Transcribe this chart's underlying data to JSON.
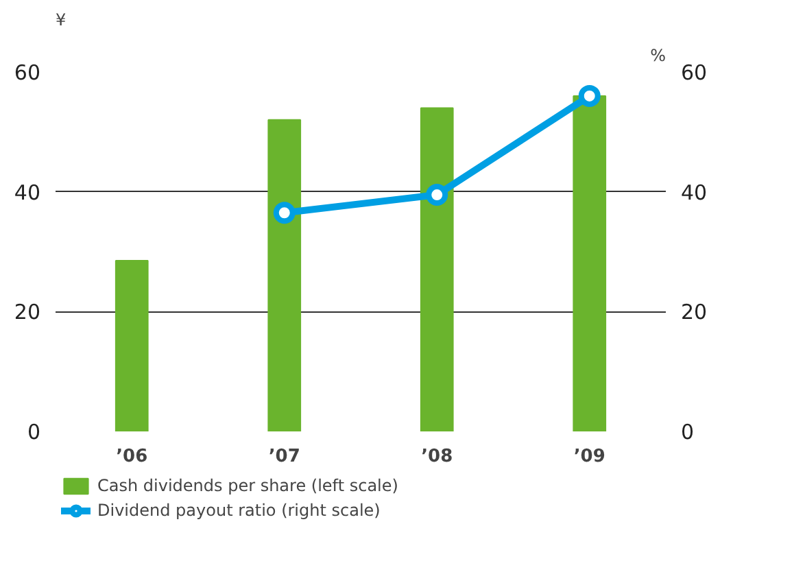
{
  "chart_data": {
    "type": "bar",
    "categories": [
      "’06",
      "’07",
      "’08",
      "’09"
    ],
    "ylabel": "¥",
    "y2label": "%",
    "ylim": [
      0,
      60
    ],
    "yticks": [
      0,
      20,
      40,
      60
    ],
    "y2lim": [
      0,
      60
    ],
    "y2ticks": [
      0,
      20,
      40,
      60
    ],
    "grid": "y",
    "legend": "bottom left",
    "series": [
      {
        "name": "Cash dividends per share (left scale)",
        "color": "#6ab42d",
        "values": [
          28.5,
          52,
          54,
          56
        ]
      },
      {
        "name": "Dividend payout ratio (right scale)",
        "type": "line",
        "axis": "y2",
        "color": "#009fe3",
        "marker": "circle",
        "values": [
          null,
          36.5,
          39.5,
          56
        ]
      }
    ]
  }
}
